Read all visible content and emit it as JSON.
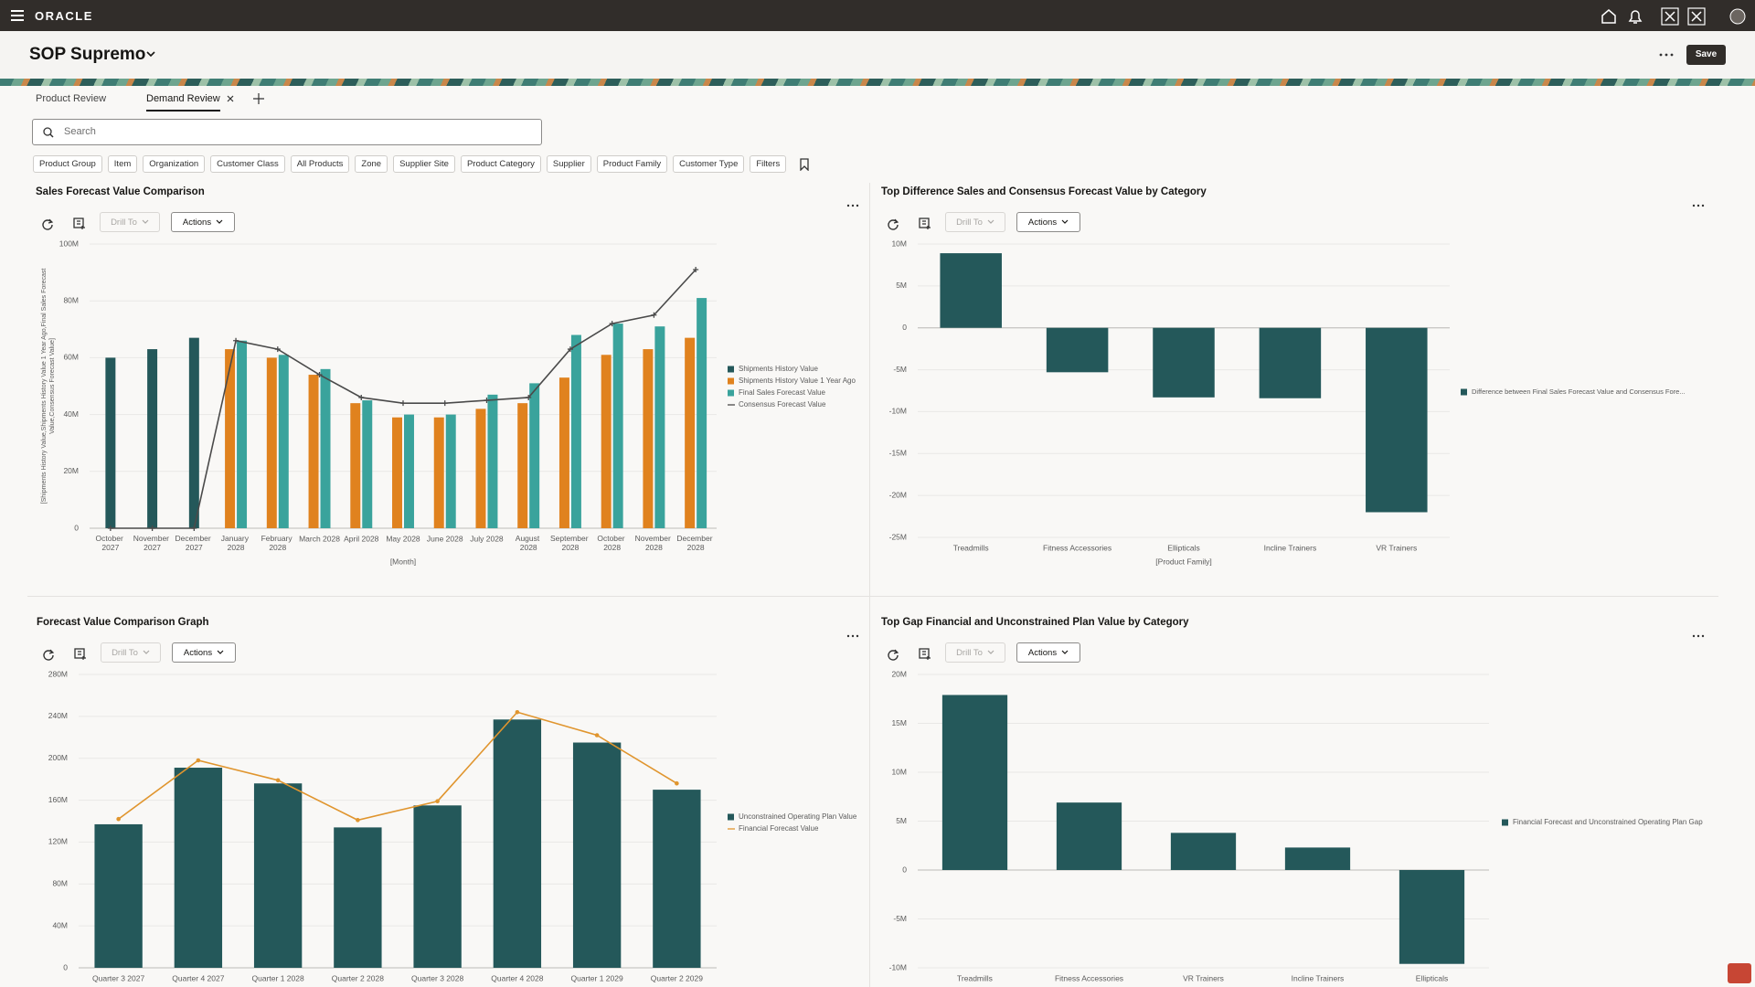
{
  "header": {
    "brand": "ORACLE",
    "title": "SOP Supremo",
    "save": "Save"
  },
  "tabs": [
    "Product Review",
    "Demand Review"
  ],
  "search": "Search",
  "filters": [
    "Product Group",
    "Item",
    "Organization",
    "Customer Class",
    "All Products",
    "Zone",
    "Supplier Site",
    "Product Category",
    "Supplier",
    "Product Family",
    "Customer Type",
    "Filters"
  ],
  "toolbar": {
    "drill": "Drill To",
    "actions": "Actions"
  },
  "chart_data": [
    {
      "type": "combo",
      "title": "Sales Forecast Value Comparison",
      "x_label": "[Month]",
      "y_label": [
        "[Shipments History Value,Shipments History Value 1 Year Ago,Final Sales Forecast",
        "Value,Consensus Forecast Value]"
      ],
      "categories": [
        "October 2027",
        "November 2027",
        "December 2027",
        "January 2028",
        "February 2028",
        "March 2028",
        "April 2028",
        "May 2028",
        "June 2028",
        "July 2028",
        "August 2028",
        "September 2028",
        "October 2028",
        "November 2028",
        "December 2028"
      ],
      "series": [
        {
          "name": "Shipments History Value",
          "type": "bar",
          "color": "#24585a",
          "values": [
            60000000,
            63000000,
            67000000,
            null,
            null,
            null,
            null,
            null,
            null,
            null,
            null,
            null,
            null,
            null,
            null
          ]
        },
        {
          "name": "Shipments History Value 1 Year Ago",
          "type": "bar",
          "color": "#e0821e",
          "values": [
            null,
            null,
            null,
            63000000,
            60000000,
            54000000,
            44000000,
            39000000,
            39000000,
            42000000,
            44000000,
            53000000,
            61000000,
            63000000,
            67000000
          ]
        },
        {
          "name": "Final Sales Forecast Value",
          "type": "bar",
          "color": "#3aa39c",
          "values": [
            null,
            null,
            null,
            66000000,
            61000000,
            56000000,
            45000000,
            40000000,
            40000000,
            47000000,
            51000000,
            68000000,
            72000000,
            71000000,
            81000000
          ]
        },
        {
          "name": "Consensus Forecast Value",
          "type": "line",
          "color": "#4a4a4a",
          "values": [
            0,
            0,
            0,
            66000000,
            63000000,
            54000000,
            46000000,
            44000000,
            44000000,
            45000000,
            46000000,
            63000000,
            72000000,
            75000000,
            91000000
          ]
        }
      ],
      "ylim": [
        0,
        100000000
      ],
      "yticks": [
        0,
        {
          "value": 20000000,
          "label": "20M"
        },
        {
          "value": 40000000,
          "label": "40M"
        },
        {
          "value": 60000000,
          "label": "60M"
        },
        {
          "value": 80000000,
          "label": "80M"
        },
        {
          "value": 100000000,
          "label": "100M"
        }
      ],
      "grid": true,
      "legend": "right"
    },
    {
      "type": "bar",
      "title": "Top Difference Sales and Consensus Forecast Value by Category",
      "x_label": "[Product Family]",
      "categories": [
        "Treadmills",
        "Fitness Accessories",
        "Ellipticals",
        "Incline Trainers",
        "VR Trainers"
      ],
      "series": [
        {
          "name": "Difference between Final Sales Forecast Value and Consensus Fore...",
          "type": "bar",
          "color": "#24585a",
          "values": [
            8900000,
            -5300000,
            -8300000,
            -8400000,
            -22000000
          ]
        }
      ],
      "ylim": [
        -25000000,
        10000000
      ],
      "yticks": [
        {
          "value": 10000000,
          "label": "10M"
        },
        {
          "value": 5000000,
          "label": "5M"
        },
        0,
        {
          "value": -5000000,
          "label": "-5M"
        },
        {
          "value": -10000000,
          "label": "-10M"
        },
        {
          "value": -15000000,
          "label": "-15M"
        },
        {
          "value": -20000000,
          "label": "-20M"
        },
        {
          "value": -25000000,
          "label": "-25M"
        }
      ],
      "grid": true,
      "legend": "right"
    },
    {
      "type": "combo",
      "title": "Forecast Value Comparison Graph",
      "categories": [
        "Quarter 3 2027",
        "Quarter 4 2027",
        "Quarter 1 2028",
        "Quarter 2 2028",
        "Quarter 3 2028",
        "Quarter 4 2028",
        "Quarter 1 2029",
        "Quarter 2 2029"
      ],
      "series": [
        {
          "name": "Unconstrained Operating Plan Value",
          "type": "bar",
          "color": "#24585a",
          "values": [
            137000000,
            191000000,
            176000000,
            134000000,
            155000000,
            237000000,
            215000000,
            170000000
          ]
        },
        {
          "name": "Financial Forecast Value",
          "type": "line",
          "color": "#e0952e",
          "values": [
            142000000,
            198000000,
            179000000,
            141000000,
            159000000,
            244000000,
            222000000,
            176000000
          ]
        }
      ],
      "ylim": [
        0,
        280000000
      ],
      "yticks": [
        0,
        {
          "value": 40000000,
          "label": "40M"
        },
        {
          "value": 80000000,
          "label": "80M"
        },
        {
          "value": 120000000,
          "label": "120M"
        },
        {
          "value": 160000000,
          "label": "160M"
        },
        {
          "value": 200000000,
          "label": "200M"
        },
        {
          "value": 240000000,
          "label": "240M"
        },
        {
          "value": 280000000,
          "label": "280M"
        }
      ],
      "grid": true,
      "legend": "right"
    },
    {
      "type": "bar",
      "title": "Top Gap Financial and Unconstrained Plan Value by Category",
      "categories": [
        "Treadmills",
        "Fitness Accessories",
        "VR Trainers",
        "Incline Trainers",
        "Ellipticals"
      ],
      "series": [
        {
          "name": "Financial Forecast and Unconstrained Operating Plan Gap",
          "type": "bar",
          "color": "#24585a",
          "values": [
            17900000,
            6900000,
            3800000,
            2300000,
            -9600000
          ]
        }
      ],
      "ylim": [
        -10000000,
        20000000
      ],
      "yticks": [
        {
          "value": 20000000,
          "label": "20M"
        },
        {
          "value": 15000000,
          "label": "15M"
        },
        {
          "value": 10000000,
          "label": "10M"
        },
        {
          "value": 5000000,
          "label": "5M"
        },
        0,
        {
          "value": -5000000,
          "label": "-5M"
        },
        {
          "value": -10000000,
          "label": "-10M"
        }
      ],
      "grid": true,
      "legend": "right"
    }
  ]
}
